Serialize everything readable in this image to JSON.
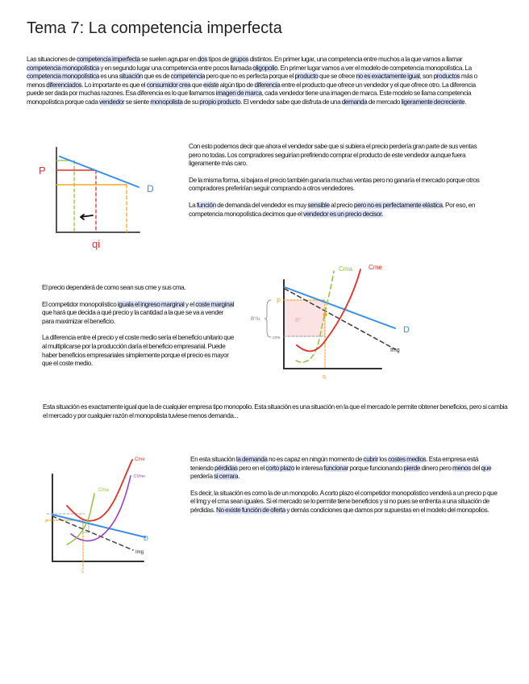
{
  "title": "Tema 7: La competencia imperfecta",
  "intro": [
    {
      "t": "Las situaciones de "
    },
    {
      "t": "competencia imperfecta",
      "hl": 1
    },
    {
      "t": " se suelen agrupar en "
    },
    {
      "t": "dos",
      "hl": 1
    },
    {
      "t": " tipos de "
    },
    {
      "t": "grupos",
      "hl": 1
    },
    {
      "t": " distintos. En primer lugar, una competencia entre muchos a la que vamos a llamar "
    },
    {
      "t": "competencia monopolística",
      "hl": 1
    },
    {
      "t": " y en segundo lugar una competencia entre pocos llamada "
    },
    {
      "t": "oligopolio",
      "hl": 1
    },
    {
      "t": ". En primer lugar vamos a ver el modelo de competencia monopolística. La "
    },
    {
      "t": "competencia monopolística",
      "hl": 1
    },
    {
      "t": " es una "
    },
    {
      "t": "situación",
      "hl": 1
    },
    {
      "t": " que es de "
    },
    {
      "t": "competencia",
      "hl": 1
    },
    {
      "t": " pero que no es perfecta porque el "
    },
    {
      "t": "producto",
      "hl": 1
    },
    {
      "t": " que se ofrece "
    },
    {
      "t": "no es exactamente igual",
      "hl": 1
    },
    {
      "t": ", son "
    },
    {
      "t": "productos",
      "hl": 1
    },
    {
      "t": " más o menos "
    },
    {
      "t": "diferenciados",
      "hl": 1
    },
    {
      "t": ". Lo importante es que el "
    },
    {
      "t": "consumidor crea",
      "hl": 1
    },
    {
      "t": " que "
    },
    {
      "t": "existe",
      "hl": 1
    },
    {
      "t": " algún tipo de "
    },
    {
      "t": "diferencia",
      "hl": 1
    },
    {
      "t": " entre el producto que ofrece un vendedor y el que ofrece otro. La diferencia puede ser dada por muchas razones. Esa diferencia es lo que llamamos "
    },
    {
      "t": "imagen de marca",
      "hl": 1
    },
    {
      "t": ", cada vendedor tiene una imagen de marca. Este modelo se llama competencia monopolística porque cada "
    },
    {
      "t": "vendedor",
      "hl": 1
    },
    {
      "t": " se siente "
    },
    {
      "t": "monopolista",
      "hl": 1
    },
    {
      "t": " de su "
    },
    {
      "t": "propio producto",
      "hl": 1
    },
    {
      "t": ". El vendedor sabe que disfruta de una "
    },
    {
      "t": "demanda",
      "hl": 1
    },
    {
      "t": " de mercado "
    },
    {
      "t": "ligeramente decreciente",
      "hl": 1
    },
    {
      "t": "."
    }
  ],
  "right1": [
    [
      {
        "t": "Con esto podemos decir que ahora el vendedor sabe que si subiera el precio perdería gran parte de sus ventas pero no todas. Los compradores seguirían prefiriendo comprar el producto de este vendedor aunque fuera ligeramente más caro."
      }
    ],
    [
      {
        "t": "De la misma forma, si bajara el precio también ganaría muchas ventas pero no ganaría el mercado porque otros compradores preferirían seguir comprando a otros vendedores."
      }
    ],
    [
      {
        "t": "La "
      },
      {
        "t": "función",
        "hl": 1
      },
      {
        "t": " de demanda del vendedor es muy "
      },
      {
        "t": "sensible",
        "hl": 1
      },
      {
        "t": " al precio "
      },
      {
        "t": "pero no es perfectamente elástica",
        "hl": 1
      },
      {
        "t": ". Por eso, en competencia monopolística decimos que el "
      },
      {
        "t": "vendedor es un precio decisor.",
        "hl": 1
      }
    ]
  ],
  "left2": [
    [
      {
        "t": "El precio dependerá de como sean sus cme y sus cma."
      }
    ],
    [
      {
        "t": "El competidor monopolístico "
      },
      {
        "t": "iguala el ingreso marginal",
        "hl": 1
      },
      {
        "t": " y el "
      },
      {
        "t": "coste marginal",
        "hl": 1
      },
      {
        "t": " que hará que decida a qué precio y la cantidad a la que se va a vender para maximizar el beneficio."
      }
    ],
    [
      {
        "t": "La diferencia entre el precio y el coste medio sería el beneficio unitario que al multiplicarse por la producción daría el beneficio empresarial. Puede haber beneficios empresariales simplemente porque el precio es mayor que el coste medio."
      }
    ]
  ],
  "middle": [
    [
      {
        "t": "Esta situación es exactamente igual que la de cualquier empresa tipo monopolio. Esta situación es una situación en la que el mercado le permite obtener beneficios, pero si cambia el mercado y por cualquier razón el monopolista tuviese menos demanda..."
      }
    ]
  ],
  "right3": [
    [
      {
        "t": "En esta situación "
      },
      {
        "t": "la demanda",
        "hl": 1
      },
      {
        "t": " no es capaz en ningún momento de "
      },
      {
        "t": "cubrir",
        "hl": 1
      },
      {
        "t": " los "
      },
      {
        "t": "costes medios",
        "hl": 1
      },
      {
        "t": ". Esta empresa está teniendo "
      },
      {
        "t": "pérdidas",
        "hl": 1
      },
      {
        "t": " pero en el "
      },
      {
        "t": "corto plazo",
        "hl": 1
      },
      {
        "t": " le interesa "
      },
      {
        "t": "funcionar",
        "hl": 1
      },
      {
        "t": " porque funcionando "
      },
      {
        "t": "pierde",
        "hl": 1
      },
      {
        "t": " dinero pero "
      },
      {
        "t": "menos",
        "hl": 1
      },
      {
        "t": " del "
      },
      {
        "t": "que",
        "hl": 1
      },
      {
        "t": " perdería "
      },
      {
        "t": "si cerrara",
        "hl": 1
      },
      {
        "t": "."
      }
    ],
    [
      {
        "t": "Es decir, la situación es como la de un monopolio. A corto plazo el competidor monopolístico venderá a un precio p que el Img y el cma sean iguales. Si el mercado se lo permite tiene beneficios y si no pues se enfrenta a una situación de pérdidas. "
      },
      {
        "t": "No existe función de oferta",
        "hl": 1
      },
      {
        "t": " y demás condiciones que damos por supuestas en el modelo del monopolios."
      }
    ]
  ],
  "graph1": {
    "p": "P",
    "d": "D",
    "q": "qi",
    "colors": {
      "demand": "#3b8fe8",
      "red": "#e0302a",
      "green": "#8cc63e",
      "orange": "#f5a623"
    }
  },
  "graph2": {
    "cma": "Cma",
    "cme": "Cme",
    "d": "D",
    "img": "Img",
    "p": "P",
    "q": "q",
    "b": "B°",
    "bu": "B°/u",
    "cmel": "cme",
    "colors": {
      "demand": "#3b8fe8",
      "cme": "#e0302a",
      "cma": "#8cc63e",
      "orange": "#f5a623",
      "shade": "#fbe3e3"
    }
  },
  "graph3": {
    "cme": "Cme",
    "cvme": "CVme",
    "cma": "Cma",
    "d": "D",
    "img": "Img",
    "p": "P",
    "q": "q",
    "colors": {
      "demand": "#3b8fe8",
      "cme": "#e0302a",
      "cvme": "#9b3fbf",
      "cma": "#8cc63e",
      "orange": "#f5a623"
    }
  }
}
